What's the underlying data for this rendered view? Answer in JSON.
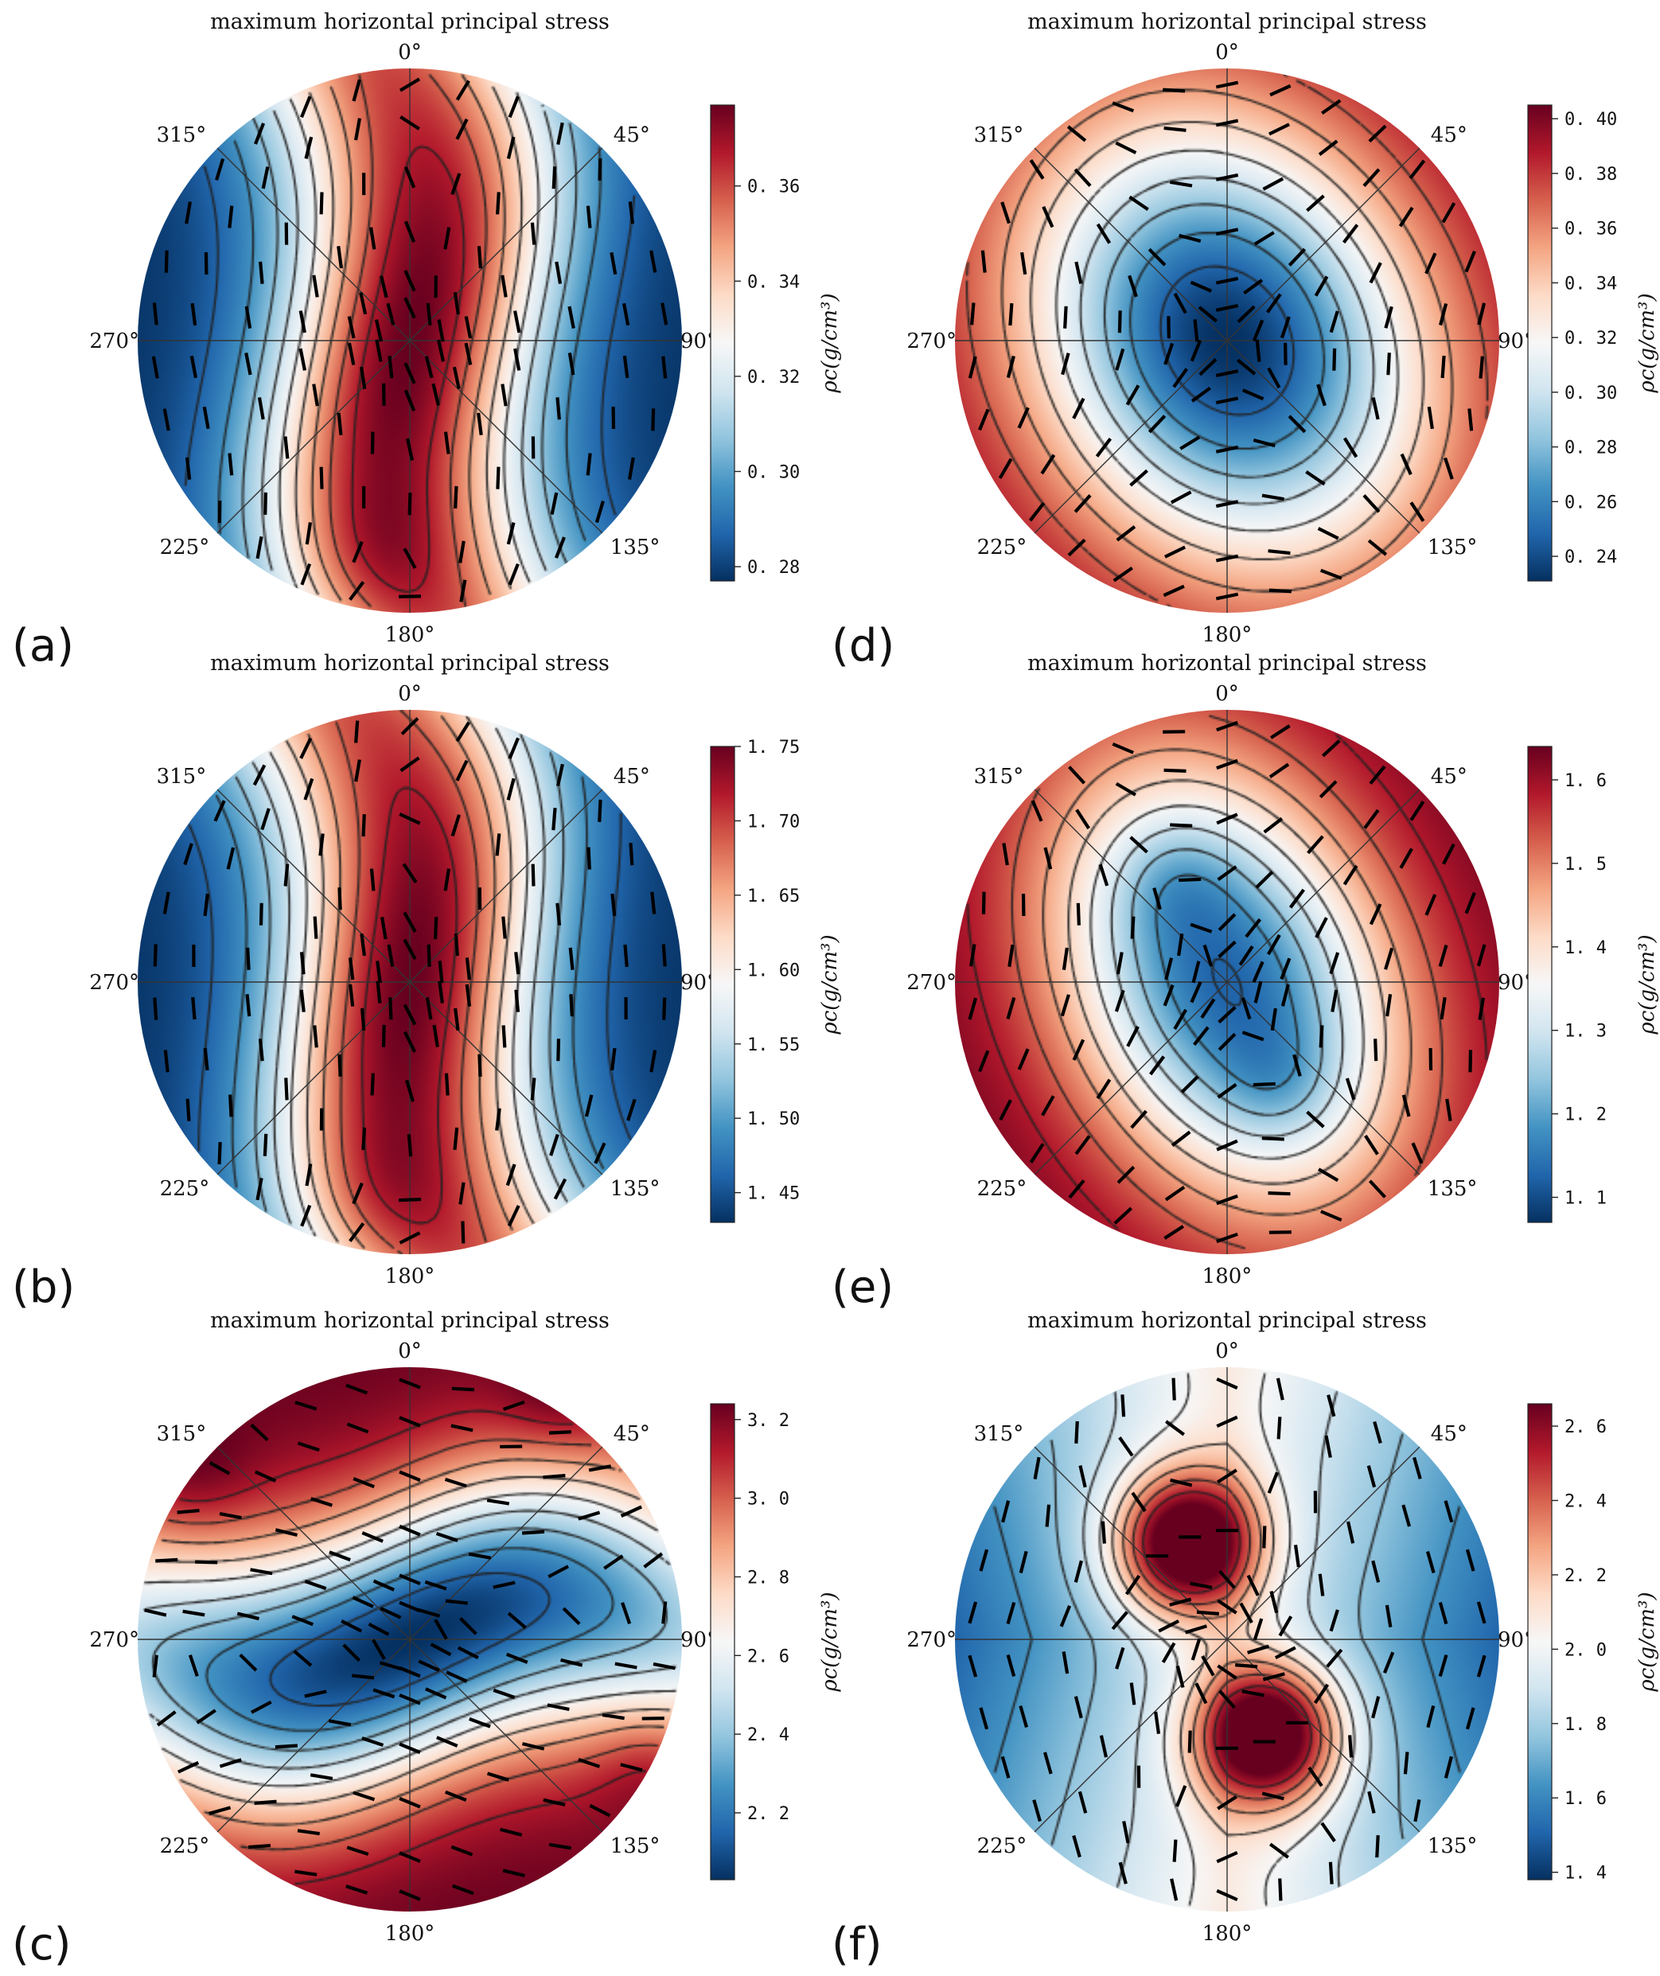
{
  "colors": {
    "cmap": [
      "#053061",
      "#2166ac",
      "#4393c3",
      "#92c5de",
      "#d1e5f0",
      "#f7f7f7",
      "#fddbc7",
      "#f4a582",
      "#d6604d",
      "#b2182b",
      "#67001f"
    ],
    "contour": "#222222",
    "axes": "#333333",
    "tick": "#111111"
  },
  "chart_data": [
    {
      "panel": "(a)",
      "type": "heatmap",
      "projection": "polar",
      "title": "maximum horizontal principal stress",
      "angle_labels": [
        "0°",
        "45°",
        "90°",
        "135°",
        "180°",
        "225°",
        "270°",
        "315°"
      ],
      "colorbar": {
        "label": "ρc(g/cm³)",
        "range": [
          0.277,
          0.377
        ],
        "ticks": [
          0.28,
          0.3,
          0.32,
          0.34,
          0.36
        ],
        "tick_labels": [
          "0. 28",
          "0. 30",
          "0. 32",
          "0. 34",
          "0. 36"
        ]
      },
      "field": {
        "pattern": "ridge",
        "center_value": 0.37,
        "edge_value": 0.28,
        "ridge_azimuth_deg": 165,
        "max_at": "center",
        "min_at": [
          "east",
          "west"
        ]
      }
    },
    {
      "panel": "(b)",
      "type": "heatmap",
      "projection": "polar",
      "title": "maximum horizontal principal stress",
      "angle_labels": [
        "0°",
        "45°",
        "90°",
        "135°",
        "180°",
        "225°",
        "270°",
        "315°"
      ],
      "colorbar": {
        "label": "ρc(g/cm³)",
        "range": [
          1.43,
          1.75
        ],
        "ticks": [
          1.45,
          1.5,
          1.55,
          1.6,
          1.65,
          1.7,
          1.75
        ],
        "tick_labels": [
          "1. 45",
          "1. 50",
          "1. 55",
          "1. 60",
          "1. 65",
          "1. 70",
          "1. 75"
        ]
      },
      "field": {
        "pattern": "ridge",
        "center_value": 1.74,
        "edge_value": 1.44,
        "ridge_azimuth_deg": 160,
        "max_at": "center",
        "min_at": [
          "east",
          "west"
        ]
      }
    },
    {
      "panel": "(c)",
      "type": "heatmap",
      "projection": "polar",
      "title": "maximum horizontal principal stress",
      "angle_labels": [
        "0°",
        "45°",
        "90°",
        "135°",
        "180°",
        "225°",
        "270°",
        "315°"
      ],
      "colorbar": {
        "label": "ρc(g/cm³)",
        "range": [
          2.03,
          3.24
        ],
        "ticks": [
          2.2,
          2.4,
          2.6,
          2.8,
          3.0,
          3.2
        ],
        "tick_labels": [
          "2. 2",
          "2. 4",
          "2. 6",
          "2. 8",
          "3. 0",
          "3. 2"
        ]
      },
      "field": {
        "pattern": "valley",
        "center_value": 2.05,
        "edge_value": 3.2,
        "valley_azimuth_deg": 78,
        "min_at": "center",
        "max_at": [
          "north",
          "south"
        ]
      }
    },
    {
      "panel": "(d)",
      "type": "heatmap",
      "projection": "polar",
      "title": "maximum horizontal principal stress",
      "angle_labels": [
        "0°",
        "45°",
        "90°",
        "135°",
        "180°",
        "225°",
        "270°",
        "315°"
      ],
      "colorbar": {
        "label": "ρc(g/cm³)",
        "range": [
          0.231,
          0.405
        ],
        "ticks": [
          0.24,
          0.26,
          0.28,
          0.3,
          0.32,
          0.34,
          0.36,
          0.38,
          0.4
        ],
        "tick_labels": [
          "0. 24",
          "0. 26",
          "0. 28",
          "0. 30",
          "0. 32",
          "0. 34",
          "0. 36",
          "0. 38",
          "0. 40"
        ]
      },
      "field": {
        "pattern": "bowl",
        "center_value": 0.235,
        "edge_value": 0.4,
        "min_at": "center",
        "max_at": "rim"
      }
    },
    {
      "panel": "(e)",
      "type": "heatmap",
      "projection": "polar",
      "title": "maximum horizontal principal stress",
      "angle_labels": [
        "0°",
        "45°",
        "90°",
        "135°",
        "180°",
        "225°",
        "270°",
        "315°"
      ],
      "colorbar": {
        "label": "ρc(g/cm³)",
        "range": [
          1.07,
          1.64
        ],
        "ticks": [
          1.1,
          1.2,
          1.3,
          1.4,
          1.5,
          1.6
        ],
        "tick_labels": [
          "1. 1",
          "1. 2",
          "1. 3",
          "1. 4",
          "1. 5",
          "1. 6"
        ]
      },
      "field": {
        "pattern": "double-bowl",
        "center_value": 1.15,
        "min_value": 1.08,
        "edge_value": 1.62,
        "min_at": [
          "330° mid-radius",
          "165° mid-radius"
        ],
        "max_at": "rim"
      }
    },
    {
      "panel": "(f)",
      "type": "heatmap",
      "projection": "polar",
      "title": "maximum horizontal principal stress",
      "angle_labels": [
        "0°",
        "45°",
        "90°",
        "135°",
        "180°",
        "225°",
        "270°",
        "315°"
      ],
      "colorbar": {
        "label": "ρc(g/cm³)",
        "range": [
          1.38,
          2.66
        ],
        "ticks": [
          1.4,
          1.6,
          1.8,
          2.0,
          2.2,
          2.4,
          2.6
        ],
        "tick_labels": [
          "1. 4",
          "1. 6",
          "1. 8",
          "2. 0",
          "2. 2",
          "2. 4",
          "2. 6"
        ]
      },
      "field": {
        "pattern": "two-peaks",
        "peak_value": 2.62,
        "background_value": 1.45,
        "max_at": [
          "335° mid-radius",
          "165° mid-radius"
        ],
        "min_at": [
          "east",
          "west"
        ]
      }
    }
  ]
}
